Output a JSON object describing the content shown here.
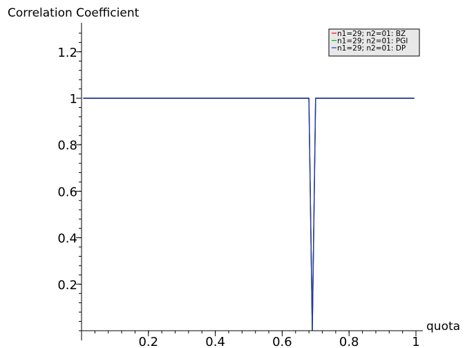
{
  "chart_data": {
    "type": "line",
    "title": "",
    "ylabel": "Correlation Coefficient",
    "xlabel": "quota",
    "xlim": [
      0,
      1
    ],
    "ylim": [
      0,
      1.3
    ],
    "x_ticks": [
      0.2,
      0.4,
      0.6,
      0.8,
      1
    ],
    "x_tick_labels": [
      "0.2",
      "0.4",
      "0.6",
      "0.8",
      "1"
    ],
    "y_ticks": [
      0.2,
      0.4,
      0.6,
      0.8,
      1,
      1.2
    ],
    "y_tick_labels": [
      "0.2",
      "0.4",
      "0.6",
      "0.8",
      "1",
      "1.2"
    ],
    "grid": false,
    "legend_position": "top-right",
    "series": [
      {
        "name": "n1=29; n2=01: BZ",
        "color": "#ff0000",
        "x": [
          0.005,
          0.68,
          0.69,
          0.7,
          0.995
        ],
        "y": [
          1,
          1,
          0,
          1,
          1
        ]
      },
      {
        "name": "n1=29; n2=01: PGI",
        "color": "#00bb00",
        "x": [
          0.005,
          0.68,
          0.69,
          0.7,
          0.995
        ],
        "y": [
          1,
          1,
          0,
          1,
          1
        ]
      },
      {
        "name": "n1=29; n2=01: DP",
        "color": "#2233bb",
        "x": [
          0.005,
          0.68,
          0.69,
          0.7,
          0.995
        ],
        "y": [
          1,
          1,
          0,
          1,
          1
        ]
      }
    ]
  }
}
